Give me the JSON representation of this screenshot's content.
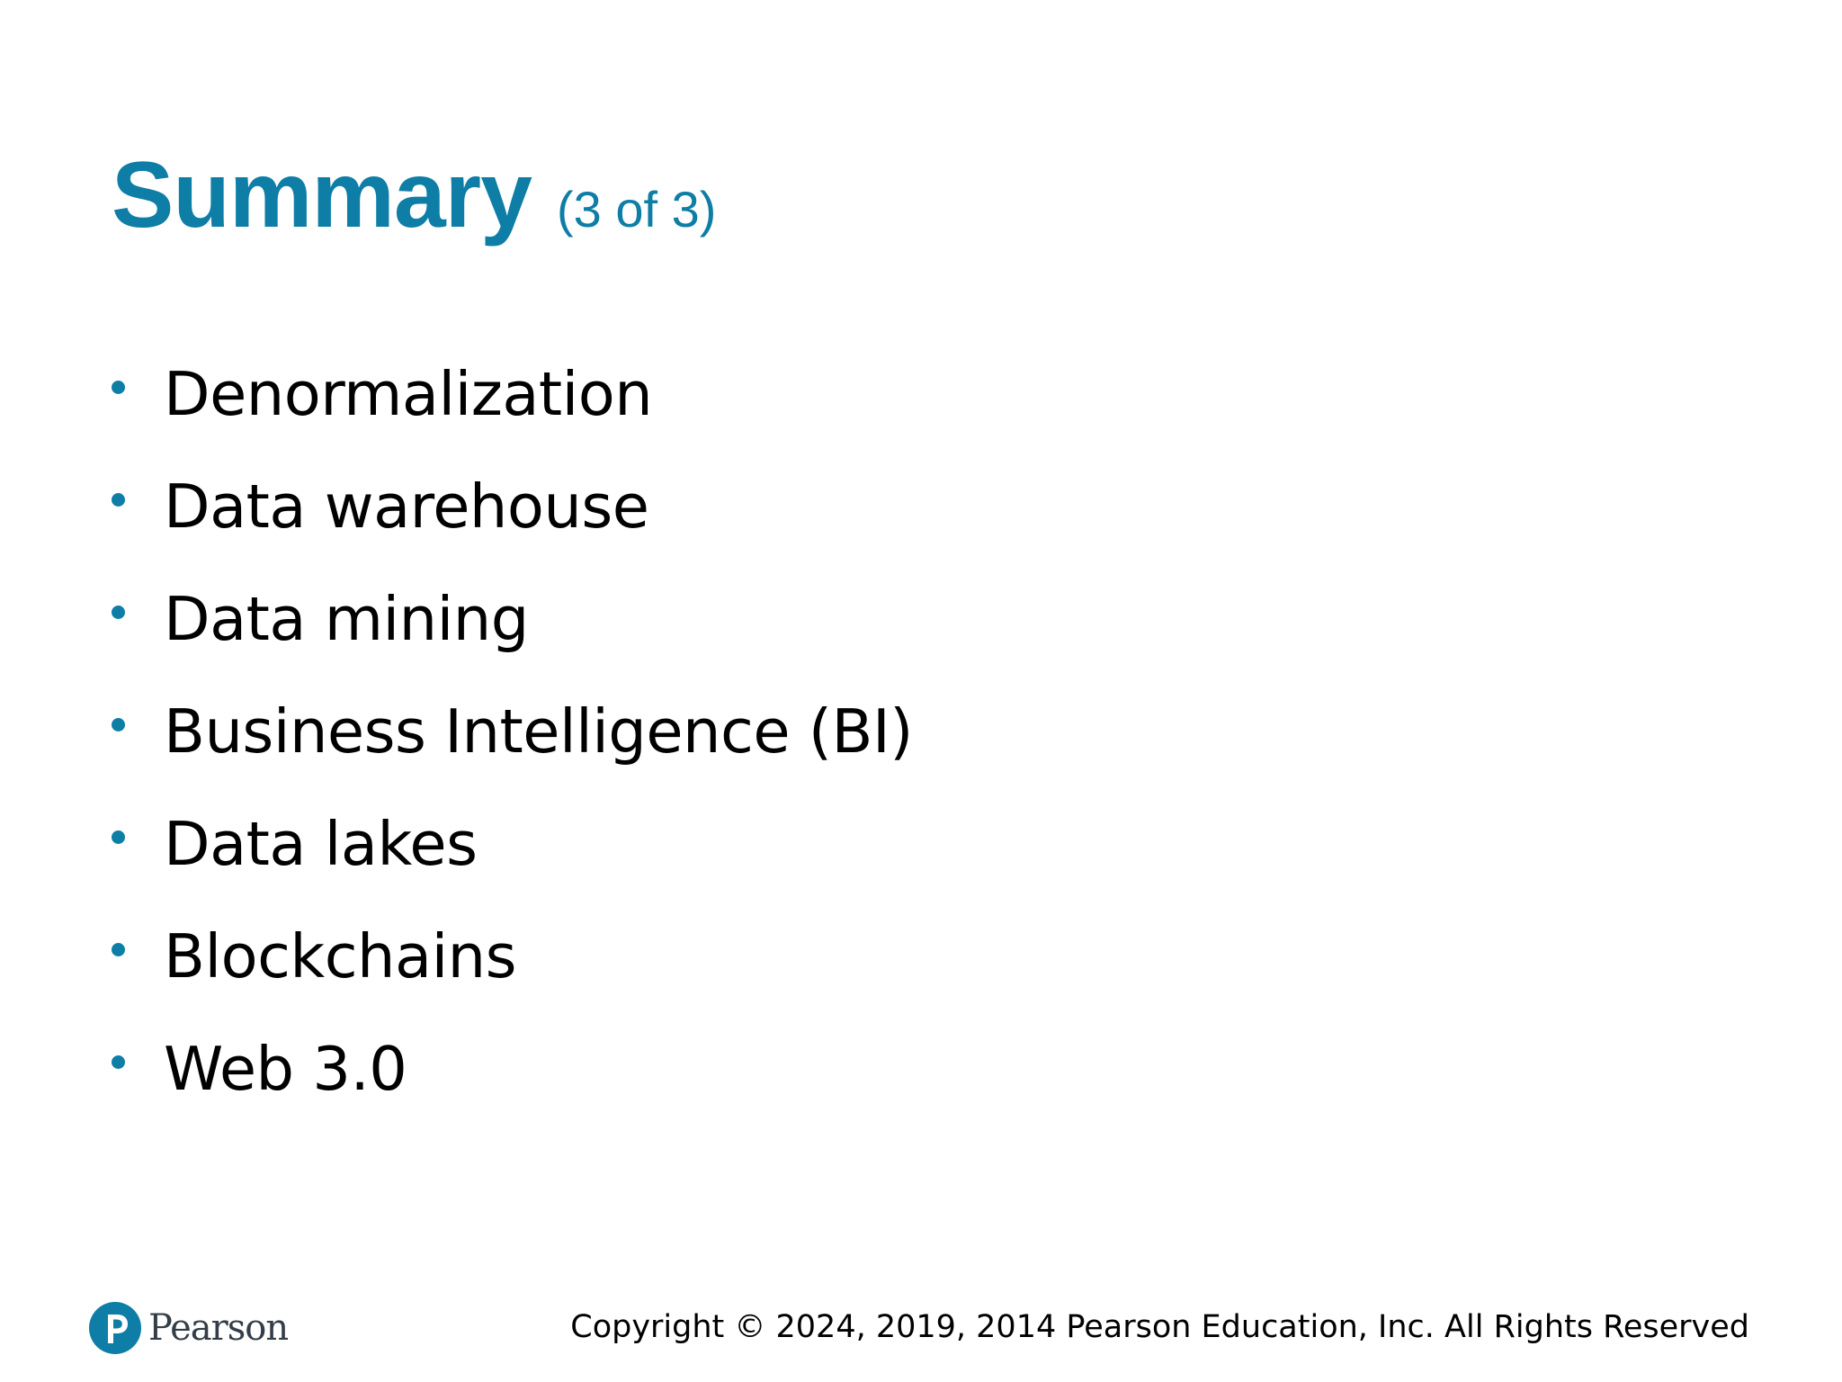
{
  "slide": {
    "title": "Summary",
    "subtitle": "(3 of 3)",
    "bullets": [
      "Denormalization",
      "Data warehouse",
      "Data mining",
      "Business Intelligence (BI)",
      "Data lakes",
      "Blockchains",
      "Web 3.0"
    ]
  },
  "footer": {
    "logo_text": "Pearson",
    "logo_icon": "pearson-p-icon",
    "copyright": "Copyright © 2024, 2019, 2014 Pearson Education, Inc. All Rights Reserved"
  },
  "colors": {
    "accent": "#0e7ea6",
    "text": "#000000",
    "background": "#ffffff"
  }
}
